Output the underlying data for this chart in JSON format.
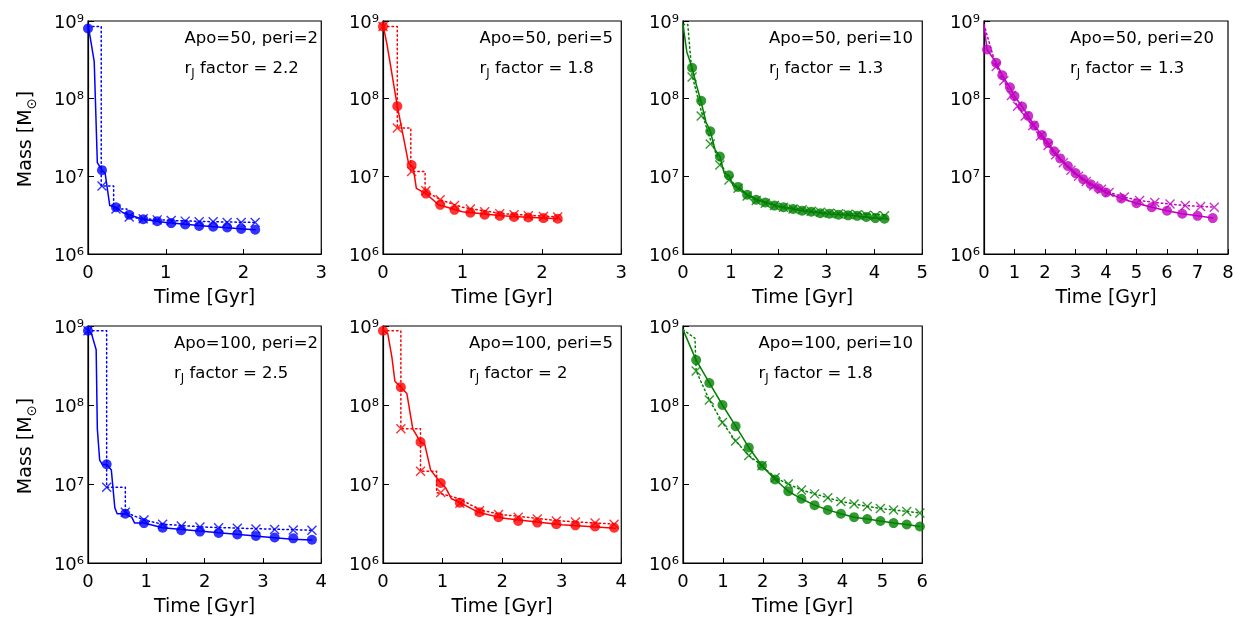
{
  "chart_data": [
    {
      "type": "line",
      "xlabel": "Time [Gyr]",
      "ylabel": "Mass [M$_{⊙}$]",
      "annotations": [
        "Apo=50, peri=2",
        "r$_{J}$ factor = 2.2"
      ],
      "xlim": [
        0,
        3
      ],
      "xticks": [
        0,
        1,
        2,
        3
      ],
      "ylim": [
        1000000.0,
        1000000000.0
      ],
      "yticks": [
        {
          "value": 1000000.0,
          "label": "10⁶"
        },
        {
          "value": 10000000.0,
          "label": "10⁷"
        },
        {
          "value": 100000000.0,
          "label": "10⁸"
        },
        {
          "value": 1000000000.0,
          "label": "10⁹"
        }
      ],
      "log": "y",
      "series": [
        {
          "line_style": "solid",
          "color": "#0000ff",
          "x": [
            0,
            0.03,
            0.08,
            0.12,
            0.18,
            0.22,
            0.28,
            0.36,
            0.45,
            0.53,
            0.7,
            1.0,
            1.5,
            2.0,
            2.15
          ],
          "values": [
            900000000.0,
            600000000.0,
            300000000.0,
            15000000.0,
            12000000.0,
            11000000.0,
            4200000.0,
            4000000.0,
            3400000.0,
            3200000.0,
            2800000.0,
            2550000.0,
            2300000.0,
            2100000.0,
            2050000.0
          ]
        },
        {
          "type": "scatter",
          "marker": "circle",
          "color": "#0000ff",
          "x": [
            0,
            0.18,
            0.36,
            0.53,
            0.71,
            0.89,
            1.07,
            1.25,
            1.43,
            1.61,
            1.79,
            1.97,
            2.15
          ],
          "values": [
            800000000.0,
            12000000.0,
            4000000.0,
            3200000.0,
            2800000.0,
            2650000.0,
            2500000.0,
            2400000.0,
            2300000.0,
            2250000.0,
            2200000.0,
            2100000.0,
            2050000.0
          ]
        },
        {
          "line_style": "dotted",
          "color": "#0000ff",
          "x": [
            0,
            0.17,
            0.17,
            0.33,
            0.33,
            0.5,
            0.5,
            0.71,
            1.07,
            1.61,
            2.15
          ],
          "values": [
            850000000.0,
            850000000.0,
            7500000.0,
            7500000.0,
            3800000.0,
            3800000.0,
            3000000.0,
            2850000.0,
            2700000.0,
            2600000.0,
            2550000.0
          ]
        },
        {
          "type": "scatter",
          "marker": "cross",
          "color": "#0000ff",
          "x": [
            0.18,
            0.36,
            0.53,
            0.71,
            0.89,
            1.07,
            1.25,
            1.43,
            1.61,
            1.79,
            1.97,
            2.15
          ],
          "values": [
            7500000.0,
            3800000.0,
            3000000.0,
            2850000.0,
            2750000.0,
            2700000.0,
            2650000.0,
            2600000.0,
            2600000.0,
            2550000.0,
            2550000.0,
            2550000.0
          ]
        }
      ]
    },
    {
      "type": "line",
      "xlabel": "Time [Gyr]",
      "annotations": [
        "Apo=50, peri=5",
        "r$_{J}$ factor = 1.8"
      ],
      "xlim": [
        0,
        3
      ],
      "xticks": [
        0,
        1,
        2,
        3
      ],
      "ylim": [
        1000000.0,
        1000000000.0
      ],
      "yticks": [
        {
          "value": 1000000.0,
          "label": "10⁶"
        },
        {
          "value": 10000000.0,
          "label": "10⁷"
        },
        {
          "value": 100000000.0,
          "label": "10⁸"
        },
        {
          "value": 1000000000.0,
          "label": "10⁹"
        }
      ],
      "log": "y",
      "series": [
        {
          "line_style": "solid",
          "color": "#ff0000",
          "x": [
            0,
            0.05,
            0.1,
            0.18,
            0.25,
            0.32,
            0.38,
            0.42,
            0.54,
            0.7,
            1.0,
            1.5,
            2.2
          ],
          "values": [
            900000000.0,
            500000000.0,
            250000000.0,
            80000000.0,
            35000000.0,
            15000000.0,
            13000000.0,
            7000000.0,
            6000000.0,
            4300000.0,
            3500000.0,
            3100000.0,
            2850000.0
          ]
        },
        {
          "type": "scatter",
          "marker": "circle",
          "color": "#ff0000",
          "x": [
            0,
            0.18,
            0.36,
            0.54,
            0.72,
            0.9,
            1.1,
            1.28,
            1.47,
            1.65,
            1.83,
            2.02,
            2.2
          ],
          "values": [
            850000000.0,
            80000000.0,
            14000000.0,
            6000000.0,
            4300000.0,
            3700000.0,
            3400000.0,
            3200000.0,
            3100000.0,
            3000000.0,
            2950000.0,
            2900000.0,
            2850000.0
          ]
        },
        {
          "line_style": "dotted",
          "color": "#ff0000",
          "x": [
            0,
            0.18,
            0.18,
            0.35,
            0.35,
            0.53,
            0.53,
            0.72,
            1.0,
            1.5,
            2.2
          ],
          "values": [
            850000000.0,
            850000000.0,
            42000000.0,
            42000000.0,
            11500000.0,
            11500000.0,
            6500000.0,
            5000000.0,
            4000000.0,
            3300000.0,
            3000000.0
          ]
        },
        {
          "type": "scatter",
          "marker": "cross",
          "color": "#ff0000",
          "x": [
            0,
            0.18,
            0.36,
            0.54,
            0.72,
            0.9,
            1.1,
            1.28,
            1.47,
            1.65,
            1.83,
            2.02,
            2.2
          ],
          "values": [
            850000000.0,
            42000000.0,
            11500000.0,
            6500000.0,
            5000000.0,
            4200000.0,
            3800000.0,
            3500000.0,
            3300000.0,
            3200000.0,
            3100000.0,
            3050000.0,
            3000000.0
          ]
        }
      ]
    },
    {
      "type": "line",
      "xlabel": "Time [Gyr]",
      "annotations": [
        "Apo=50, peri=10",
        "r$_{J}$ factor = 1.3"
      ],
      "xlim": [
        0,
        5
      ],
      "xticks": [
        0,
        1,
        2,
        3,
        4,
        5
      ],
      "ylim": [
        1000000.0,
        1000000000.0
      ],
      "yticks": [
        {
          "value": 1000000.0,
          "label": "10⁶"
        },
        {
          "value": 10000000.0,
          "label": "10⁷"
        },
        {
          "value": 100000000.0,
          "label": "10⁸"
        },
        {
          "value": 1000000000.0,
          "label": "10⁹"
        }
      ],
      "log": "y",
      "series": [
        {
          "line_style": "solid",
          "color": "#008000",
          "x": [
            0,
            0.08,
            0.19,
            0.28,
            0.38,
            0.48,
            0.57,
            0.67,
            0.77,
            0.86,
            0.96,
            1.05,
            1.2,
            1.34,
            1.6,
            2.0,
            2.5,
            3.0,
            3.5,
            4.0,
            4.25
          ],
          "values": [
            900000000.0,
            400000000.0,
            250000000.0,
            150000000.0,
            90000000.0,
            50000000.0,
            38000000.0,
            22000000.0,
            18000000.0,
            11000000.0,
            10300000.0,
            7500000.0,
            7000000.0,
            5800000.0,
            4900000.0,
            4100000.0,
            3600000.0,
            3300000.0,
            3150000.0,
            2900000.0,
            2850000.0
          ]
        },
        {
          "type": "scatter",
          "marker": "circle",
          "color": "#008000",
          "x": [
            0.19,
            0.38,
            0.57,
            0.77,
            0.96,
            1.15,
            1.34,
            1.53,
            1.72,
            1.91,
            2.1,
            2.3,
            2.49,
            2.68,
            2.87,
            3.06,
            3.25,
            3.45,
            3.64,
            3.83,
            4.02,
            4.21
          ],
          "values": [
            250000000.0,
            94000000.0,
            38000000.0,
            18000000.0,
            10300000.0,
            7300000.0,
            5800000.0,
            5000000.0,
            4600000.0,
            4200000.0,
            4000000.0,
            3800000.0,
            3600000.0,
            3500000.0,
            3350000.0,
            3300000.0,
            3200000.0,
            3150000.0,
            3100000.0,
            3000000.0,
            2900000.0,
            2850000.0
          ]
        },
        {
          "line_style": "dotted",
          "color": "#008000",
          "x": [
            0,
            0.1,
            0.19,
            0.38,
            0.57,
            0.77,
            0.96,
            1.15,
            1.5,
            2.0,
            3.0,
            4.25
          ],
          "values": [
            900000000.0,
            900000000.0,
            200000000.0,
            70000000.0,
            30000000.0,
            15000000.0,
            9500000.0,
            7000000.0,
            5000000.0,
            4100000.0,
            3400000.0,
            3200000.0
          ]
        },
        {
          "type": "scatter",
          "marker": "cross",
          "color": "#008000",
          "x": [
            0.19,
            0.38,
            0.57,
            0.77,
            0.96,
            1.15,
            1.34,
            1.53,
            1.72,
            1.91,
            2.1,
            2.3,
            2.49,
            2.68,
            2.87,
            3.06,
            3.25,
            3.45,
            3.64,
            3.83,
            4.02,
            4.21
          ],
          "values": [
            190000000.0,
            60000000.0,
            26000000.0,
            14000000.0,
            9000000.0,
            7000000.0,
            5600000.0,
            4900000.0,
            4500000.0,
            4200000.0,
            4000000.0,
            3800000.0,
            3700000.0,
            3550000.0,
            3450000.0,
            3350000.0,
            3300000.0,
            3250000.0,
            3200000.0,
            3150000.0,
            3100000.0,
            3100000.0
          ]
        }
      ]
    },
    {
      "type": "line",
      "xlabel": "Time [Gyr]",
      "annotations": [
        "Apo=50, peri=20",
        "r$_{J}$ factor = 1.3"
      ],
      "xlim": [
        0,
        8
      ],
      "xticks": [
        0,
        1,
        2,
        3,
        4,
        5,
        6,
        7,
        8
      ],
      "ylim": [
        1000000.0,
        1000000000.0
      ],
      "yticks": [
        {
          "value": 1000000.0,
          "label": "10⁶"
        },
        {
          "value": 10000000.0,
          "label": "10⁷"
        },
        {
          "value": 100000000.0,
          "label": "10⁸"
        },
        {
          "value": 1000000000.0,
          "label": "10⁹"
        }
      ],
      "log": "y",
      "series": [
        {
          "line_style": "solid",
          "color": "#bf00bf",
          "x": [
            0,
            0.1,
            0.4,
            0.6,
            0.85,
            1.0,
            1.25,
            1.45,
            1.65,
            1.9,
            2.1,
            2.3,
            2.5,
            2.75,
            3.0,
            3.25,
            3.5,
            3.75,
            4.0,
            4.5,
            5.0,
            5.5,
            6.0,
            6.5,
            7.0,
            7.5
          ],
          "values": [
            900000000.0,
            430000000.0,
            290000000.0,
            200000000.0,
            140000000.0,
            108000000.0,
            79000000.0,
            60000000.0,
            45000000.0,
            34000000.0,
            27000000.0,
            21000000.0,
            17000000.0,
            13600000.0,
            11000000.0,
            9200000.0,
            7900000.0,
            7000000.0,
            6200000.0,
            5200000.0,
            4500000.0,
            4000000.0,
            3600000.0,
            3300000.0,
            3100000.0,
            2900000.0
          ]
        },
        {
          "type": "scatter",
          "marker": "circle",
          "color": "#bf00bf",
          "x": [
            0.1,
            0.4,
            0.6,
            0.85,
            1.0,
            1.25,
            1.45,
            1.65,
            1.9,
            2.1,
            2.3,
            2.5,
            2.75,
            3.0,
            3.25,
            3.5,
            3.75,
            4.0,
            4.5,
            5.0,
            5.5,
            6.0,
            6.5,
            7.0,
            7.5
          ],
          "values": [
            430000000.0,
            290000000.0,
            200000000.0,
            140000000.0,
            108000000.0,
            79000000.0,
            60000000.0,
            45000000.0,
            34000000.0,
            27000000.0,
            21000000.0,
            17000000.0,
            13600000.0,
            11000000.0,
            9200000.0,
            7900000.0,
            7000000.0,
            6200000.0,
            5200000.0,
            4500000.0,
            4000000.0,
            3600000.0,
            3300000.0,
            3100000.0,
            2900000.0
          ]
        },
        {
          "line_style": "dotted",
          "color": "#bf00bf",
          "x": [
            0,
            0.4,
            0.65,
            0.9,
            1.1,
            1.35,
            1.6,
            1.85,
            2.1,
            2.35,
            2.6,
            2.85,
            3.1,
            3.35,
            3.6,
            3.85,
            4.1,
            4.6,
            5.1,
            5.6,
            6.1,
            6.6,
            7.1,
            7.55
          ],
          "values": [
            900000000.0,
            260000000.0,
            170000000.0,
            110000000.0,
            80000000.0,
            60000000.0,
            45000000.0,
            33000000.0,
            25000000.0,
            19000000.0,
            15000000.0,
            12000000.0,
            10000000.0,
            8600000.0,
            7500000.0,
            6800000.0,
            6200000.0,
            5400000.0,
            4900000.0,
            4600000.0,
            4400000.0,
            4200000.0,
            4100000.0,
            4000000.0
          ]
        },
        {
          "type": "scatter",
          "marker": "cross",
          "color": "#bf00bf",
          "x": [
            0.4,
            0.65,
            0.9,
            1.1,
            1.35,
            1.6,
            1.85,
            2.1,
            2.35,
            2.6,
            2.85,
            3.1,
            3.35,
            3.6,
            3.85,
            4.1,
            4.6,
            5.1,
            5.6,
            6.1,
            6.6,
            7.1,
            7.55
          ],
          "values": [
            260000000.0,
            170000000.0,
            110000000.0,
            80000000.0,
            60000000.0,
            45000000.0,
            33000000.0,
            25000000.0,
            19000000.0,
            15000000.0,
            12000000.0,
            10000000.0,
            8600000.0,
            7500000.0,
            6800000.0,
            6200000.0,
            5400000.0,
            4900000.0,
            4600000.0,
            4400000.0,
            4200000.0,
            4100000.0,
            4000000.0
          ]
        }
      ]
    },
    {
      "type": "line",
      "xlabel": "Time [Gyr]",
      "ylabel": "Mass [M$_{⊙}$]",
      "annotations": [
        "Apo=100, peri=2",
        "r$_{J}$ factor = 2.5"
      ],
      "xlim": [
        0,
        4
      ],
      "xticks": [
        0,
        1,
        2,
        3,
        4
      ],
      "ylim": [
        1000000.0,
        1000000000.0
      ],
      "yticks": [
        {
          "value": 1000000.0,
          "label": "10⁶"
        },
        {
          "value": 10000000.0,
          "label": "10⁷"
        },
        {
          "value": 100000000.0,
          "label": "10⁸"
        },
        {
          "value": 1000000000.0,
          "label": "10⁹"
        }
      ],
      "log": "y",
      "series": [
        {
          "line_style": "solid",
          "color": "#0000ff",
          "x": [
            0,
            0.06,
            0.14,
            0.16,
            0.2,
            0.25,
            0.32,
            0.4,
            0.46,
            0.5,
            0.64,
            0.75,
            0.8,
            0.96,
            1.28,
            2.0,
            3.0,
            3.5,
            3.84
          ],
          "values": [
            900000000.0,
            800000000.0,
            500000000.0,
            50000000.0,
            20000000.0,
            17500000.0,
            17800000.0,
            15000000.0,
            5000000.0,
            4200000.0,
            4200000.0,
            3800000.0,
            3200000.0,
            3200000.0,
            2800000.0,
            2500000.0,
            2150000.0,
            2000000.0,
            1950000.0
          ]
        },
        {
          "type": "scatter",
          "marker": "circle",
          "color": "#0000ff",
          "x": [
            0,
            0.32,
            0.64,
            0.96,
            1.28,
            1.6,
            1.92,
            2.24,
            2.56,
            2.88,
            3.2,
            3.52,
            3.84
          ],
          "values": [
            870000000.0,
            17800000.0,
            4200000.0,
            3200000.0,
            2800000.0,
            2600000.0,
            2500000.0,
            2400000.0,
            2300000.0,
            2200000.0,
            2100000.0,
            2050000.0,
            1970000.0
          ]
        },
        {
          "line_style": "dotted",
          "color": "#0000ff",
          "x": [
            0,
            0.32,
            0.32,
            0.64,
            0.64,
            0.96,
            1.28,
            2.0,
            3.0,
            3.84
          ],
          "values": [
            870000000.0,
            870000000.0,
            9100000.0,
            9100000.0,
            4400000.0,
            3500000.0,
            3100000.0,
            2850000.0,
            2700000.0,
            2600000.0
          ]
        },
        {
          "type": "scatter",
          "marker": "cross",
          "color": "#0000ff",
          "x": [
            0,
            0.32,
            0.64,
            0.96,
            1.28,
            1.6,
            1.92,
            2.24,
            2.56,
            2.88,
            3.2,
            3.52,
            3.84
          ],
          "values": [
            870000000.0,
            9100000.0,
            4400000.0,
            3500000.0,
            3100000.0,
            2950000.0,
            2850000.0,
            2800000.0,
            2750000.0,
            2700000.0,
            2650000.0,
            2620000.0,
            2600000.0
          ]
        }
      ]
    },
    {
      "type": "line",
      "xlabel": "Time [Gyr]",
      "annotations": [
        "Apo=100, peri=5",
        "r$_{J}$ factor = 2"
      ],
      "xlim": [
        0,
        4
      ],
      "xticks": [
        0,
        1,
        2,
        3,
        4
      ],
      "ylim": [
        1000000.0,
        1000000000.0
      ],
      "yticks": [
        {
          "value": 1000000.0,
          "label": "10⁶"
        },
        {
          "value": 10000000.0,
          "label": "10⁷"
        },
        {
          "value": 100000000.0,
          "label": "10⁸"
        },
        {
          "value": 1000000000.0,
          "label": "10⁹"
        }
      ],
      "log": "y",
      "series": [
        {
          "line_style": "solid",
          "color": "#ff0000",
          "x": [
            0,
            0.08,
            0.15,
            0.2,
            0.3,
            0.4,
            0.5,
            0.63,
            0.7,
            0.8,
            0.97,
            1.05,
            1.15,
            1.29,
            1.6,
            2.0,
            3.0,
            3.9
          ],
          "values": [
            900000000.0,
            800000000.0,
            400000000.0,
            200000000.0,
            168000000.0,
            140000000.0,
            50000000.0,
            34000000.0,
            32000000.0,
            15000000.0,
            10300000.0,
            9000000.0,
            6500000.0,
            5800000.0,
            4400000.0,
            3700000.0,
            3050000.0,
            2750000.0
          ]
        },
        {
          "type": "scatter",
          "marker": "circle",
          "color": "#ff0000",
          "x": [
            0,
            0.3,
            0.63,
            0.97,
            1.29,
            1.62,
            1.94,
            2.27,
            2.59,
            2.91,
            3.23,
            3.56,
            3.88
          ],
          "values": [
            870000000.0,
            168000000.0,
            34000000.0,
            10300000.0,
            5800000.0,
            4400000.0,
            3800000.0,
            3400000.0,
            3250000.0,
            3100000.0,
            3000000.0,
            2900000.0,
            2800000.0
          ]
        },
        {
          "line_style": "dotted",
          "color": "#ff0000",
          "x": [
            0,
            0.3,
            0.3,
            0.63,
            0.63,
            0.9,
            0.9,
            1.29,
            1.62,
            2.0,
            3.0,
            3.9
          ],
          "values": [
            870000000.0,
            870000000.0,
            50000000.0,
            50000000.0,
            14500000.0,
            14500000.0,
            7800000.0,
            6500000.0,
            4700000.0,
            4100000.0,
            3400000.0,
            3100000.0
          ]
        },
        {
          "type": "scatter",
          "marker": "cross",
          "color": "#ff0000",
          "x": [
            0.3,
            0.63,
            0.97,
            1.29,
            1.62,
            1.94,
            2.27,
            2.59,
            2.91,
            3.23,
            3.56,
            3.88
          ],
          "values": [
            50000000.0,
            14500000.0,
            7800000.0,
            5700000.0,
            4600000.0,
            4100000.0,
            3800000.0,
            3600000.0,
            3400000.0,
            3300000.0,
            3200000.0,
            3100000.0
          ]
        }
      ]
    },
    {
      "type": "line",
      "xlabel": "Time [Gyr]",
      "annotations": [
        "Apo=100, peri=10",
        "r$_{J}$ factor = 1.8"
      ],
      "xlim": [
        0,
        6
      ],
      "xticks": [
        0,
        1,
        2,
        3,
        4,
        5,
        6
      ],
      "ylim": [
        1000000.0,
        1000000000.0
      ],
      "yticks": [
        {
          "value": 1000000.0,
          "label": "10⁶"
        },
        {
          "value": 10000000.0,
          "label": "10⁷"
        },
        {
          "value": 100000000.0,
          "label": "10⁸"
        },
        {
          "value": 1000000000.0,
          "label": "10⁹"
        }
      ],
      "log": "y",
      "series": [
        {
          "line_style": "solid",
          "color": "#008000",
          "x": [
            0,
            0.33,
            0.66,
            0.99,
            1.32,
            1.65,
            1.98,
            2.31,
            2.64,
            2.97,
            3.3,
            3.63,
            3.96,
            4.29,
            4.62,
            4.95,
            5.28,
            5.61,
            5.94
          ],
          "values": [
            900000000.0,
            370000000.0,
            190000000.0,
            100000000.0,
            54000000.0,
            29000000.0,
            17000000.0,
            11400000.0,
            8100000.0,
            6500000.0,
            5400000.0,
            4700000.0,
            4200000.0,
            3800000.0,
            3600000.0,
            3400000.0,
            3200000.0,
            3070000.0,
            2900000.0
          ]
        },
        {
          "type": "scatter",
          "marker": "circle",
          "color": "#008000",
          "x": [
            0.33,
            0.66,
            0.99,
            1.32,
            1.65,
            1.98,
            2.31,
            2.64,
            2.97,
            3.3,
            3.63,
            3.96,
            4.29,
            4.62,
            4.95,
            5.28,
            5.61,
            5.94
          ],
          "values": [
            370000000.0,
            190000000.0,
            100000000.0,
            54000000.0,
            29000000.0,
            17000000.0,
            11400000.0,
            8100000.0,
            6500000.0,
            5400000.0,
            4700000.0,
            4200000.0,
            3800000.0,
            3600000.0,
            3400000.0,
            3200000.0,
            3070000.0,
            2900000.0
          ]
        },
        {
          "line_style": "dotted",
          "color": "#008000",
          "x": [
            0,
            0.3,
            0.33,
            0.66,
            0.99,
            1.32,
            1.65,
            1.98,
            2.31,
            2.64,
            2.97,
            3.3,
            3.63,
            3.96,
            4.29,
            4.62,
            4.95,
            5.28,
            5.61,
            5.94
          ],
          "values": [
            900000000.0,
            700000000.0,
            270000000.0,
            116000000.0,
            60000000.0,
            35000000.0,
            23000000.0,
            17000000.0,
            12000000.0,
            10000000.0,
            8400000.0,
            7500000.0,
            6700000.0,
            6000000.0,
            5600000.0,
            5200000.0,
            4900000.0,
            4700000.0,
            4500000.0,
            4300000.0
          ]
        },
        {
          "type": "scatter",
          "marker": "cross",
          "color": "#008000",
          "x": [
            0.33,
            0.66,
            0.99,
            1.32,
            1.65,
            1.98,
            2.31,
            2.64,
            2.97,
            3.3,
            3.63,
            3.96,
            4.29,
            4.62,
            4.95,
            5.28,
            5.61,
            5.94
          ],
          "values": [
            270000000.0,
            116000000.0,
            60000000.0,
            35000000.0,
            23000000.0,
            17000000.0,
            12000000.0,
            10000000.0,
            8400000.0,
            7500000.0,
            6700000.0,
            6000000.0,
            5600000.0,
            5200000.0,
            4900000.0,
            4700000.0,
            4500000.0,
            4300000.0
          ]
        }
      ]
    }
  ]
}
